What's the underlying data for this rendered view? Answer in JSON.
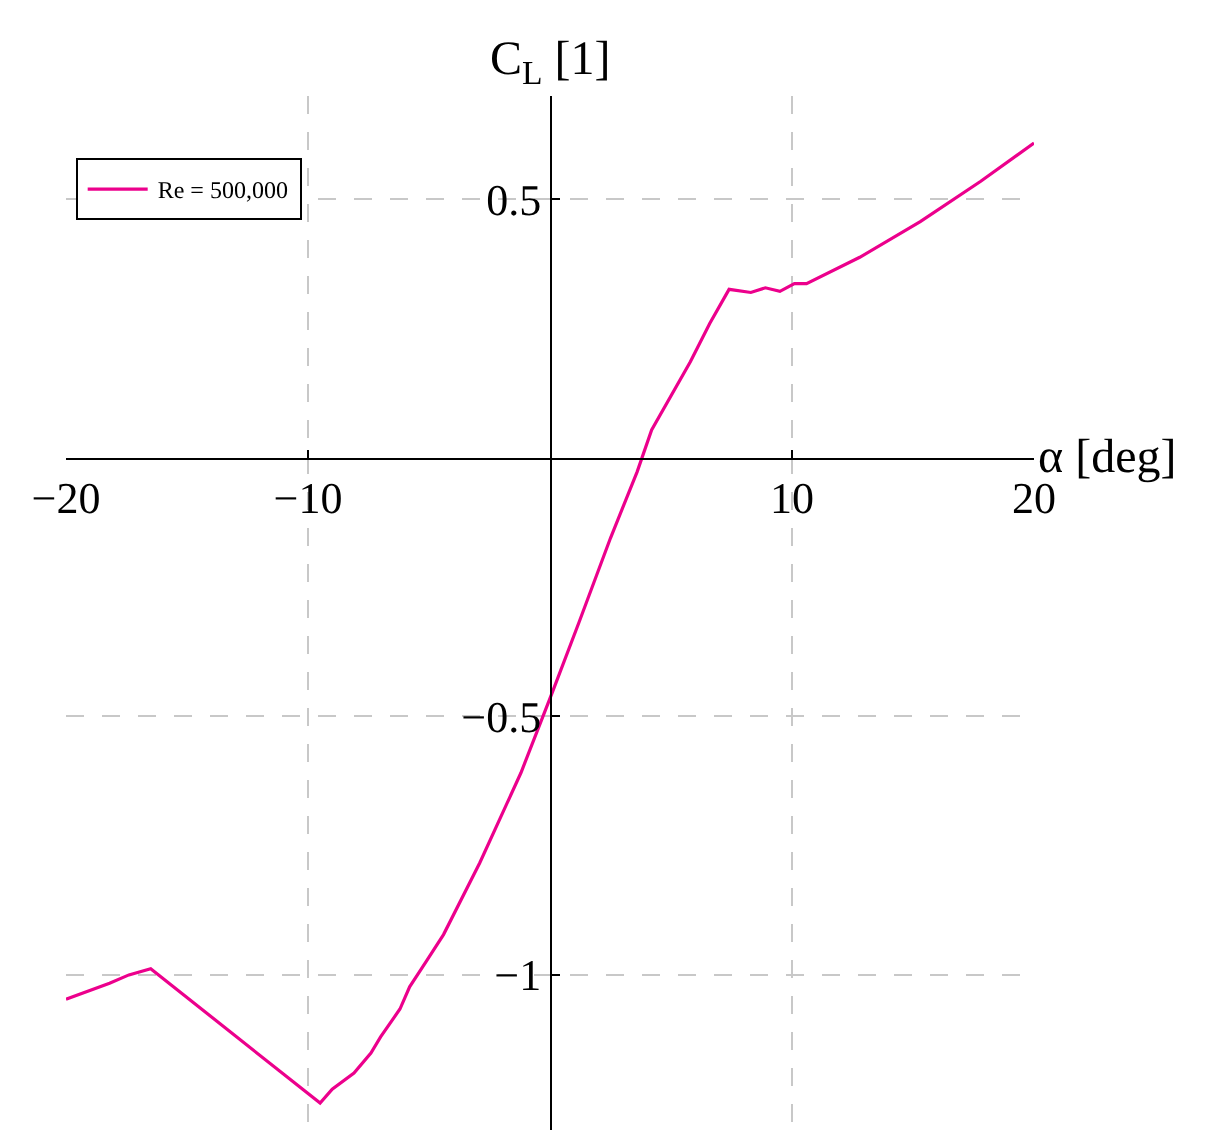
{
  "chart_data": {
    "type": "line",
    "xlabel": "α [deg]",
    "ylabel": "C$_{L}$ [1]",
    "xlim": [
      -20,
      20
    ],
    "ylim": [
      -1.3,
      0.7
    ],
    "xticks": [
      -20,
      -10,
      10,
      20
    ],
    "yticks": [
      -1,
      -0.5,
      0.5
    ],
    "grid": true,
    "legend": "top left",
    "marker": "none",
    "line_style": "solid",
    "series": [
      {
        "name": "Re = 500,000",
        "color": "#ec008c",
        "x": [
          -20,
          -18.2,
          -17.4,
          -16.5,
          -9.5,
          -9.0,
          -8.1,
          -7.4,
          -7.0,
          -6.2,
          -5.8,
          -5.1,
          -4.4,
          -2.9,
          -1.2,
          0.1,
          1.2,
          2.5,
          3.6,
          4.2,
          5.8,
          6.6,
          7.4,
          8.3,
          8.9,
          9.5,
          10.1,
          10.6,
          12.8,
          15.3,
          17.8,
          20
        ],
        "values": [
          -1.047,
          -1.016,
          -1.0,
          -0.988,
          -1.248,
          -1.221,
          -1.19,
          -1.151,
          -1.12,
          -1.066,
          -1.023,
          -0.973,
          -0.922,
          -0.783,
          -0.609,
          -0.453,
          -0.318,
          -0.155,
          -0.027,
          0.054,
          0.186,
          0.26,
          0.326,
          0.32,
          0.329,
          0.322,
          0.337,
          0.337,
          0.388,
          0.457,
          0.535,
          0.609
        ]
      }
    ]
  }
}
